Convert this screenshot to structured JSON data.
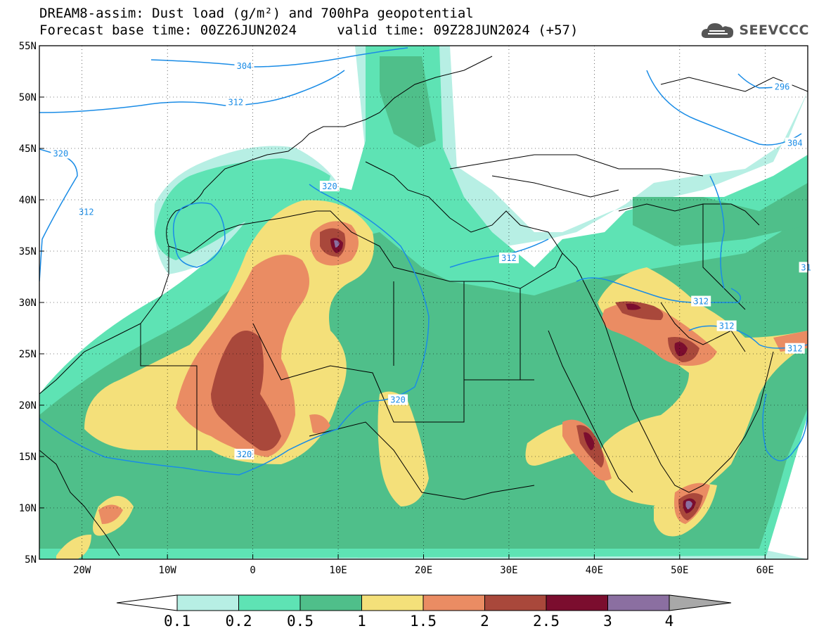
{
  "header": {
    "title_line1": "DREAM8-assim: Dust load (g/m²) and 700hPa geopotential",
    "title_line2": "Forecast base time: 00Z26JUN2024     valid time: 09Z28JUN2024 (+57)",
    "logo_text": "SEEVCCC"
  },
  "map": {
    "lon_range": [
      -25,
      65
    ],
    "lat_range": [
      5,
      55
    ],
    "lat_ticks": [
      {
        "value": 55,
        "label": "55N"
      },
      {
        "value": 50,
        "label": "50N"
      },
      {
        "value": 45,
        "label": "45N"
      },
      {
        "value": 40,
        "label": "40N"
      },
      {
        "value": 35,
        "label": "35N"
      },
      {
        "value": 30,
        "label": "30N"
      },
      {
        "value": 25,
        "label": "25N"
      },
      {
        "value": 20,
        "label": "20N"
      },
      {
        "value": 15,
        "label": "15N"
      },
      {
        "value": 10,
        "label": "10N"
      },
      {
        "value": 5,
        "label": "5N"
      }
    ],
    "lon_ticks": [
      {
        "value": -20,
        "label": "20W"
      },
      {
        "value": -10,
        "label": "10W"
      },
      {
        "value": 0,
        "label": "0"
      },
      {
        "value": 10,
        "label": "10E"
      },
      {
        "value": 20,
        "label": "20E"
      },
      {
        "value": 30,
        "label": "30E"
      },
      {
        "value": 40,
        "label": "40E"
      },
      {
        "value": 50,
        "label": "50E"
      },
      {
        "value": 60,
        "label": "60E"
      }
    ],
    "contour_labels": [
      {
        "text": "304",
        "lon": -1,
        "lat": 53
      },
      {
        "text": "312",
        "lon": -2,
        "lat": 49.5
      },
      {
        "text": "320",
        "lon": -22.5,
        "lat": 44.5
      },
      {
        "text": "312",
        "lon": -19.5,
        "lat": 38.8
      },
      {
        "text": "320",
        "lon": 9,
        "lat": 41.3
      },
      {
        "text": "312",
        "lon": 30,
        "lat": 34.3
      },
      {
        "text": "312",
        "lon": 52.5,
        "lat": 30.1
      },
      {
        "text": "312",
        "lon": 55.5,
        "lat": 27.7
      },
      {
        "text": "312",
        "lon": 63.5,
        "lat": 25.5
      },
      {
        "text": "320",
        "lon": 17,
        "lat": 20.5
      },
      {
        "text": "320",
        "lon": -1,
        "lat": 15.2
      },
      {
        "text": "296",
        "lon": 62,
        "lat": 51
      },
      {
        "text": "304",
        "lon": 63.5,
        "lat": 45.5
      },
      {
        "text": "31",
        "lon": 64.8,
        "lat": 33.4
      }
    ]
  },
  "legend": {
    "colors": [
      "#b7efe4",
      "#5ee3b4",
      "#4fbf8a",
      "#f4e07a",
      "#ea8c63",
      "#a9483b",
      "#7b0d2e",
      "#8b6fa1"
    ],
    "under_color": "#ffffff",
    "over_color": "#a8a8a8",
    "labels": [
      "0.1",
      "0.2",
      "0.5",
      "1",
      "1.5",
      "2",
      "2.5",
      "3",
      "4"
    ]
  }
}
